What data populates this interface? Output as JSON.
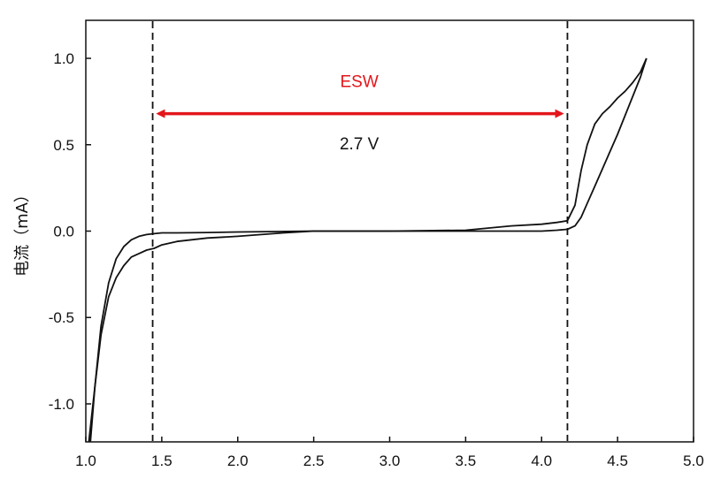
{
  "chart_data": {
    "type": "line",
    "title": "",
    "xlabel": "",
    "ylabel": "电流（mA）",
    "xlim": [
      1.0,
      5.0
    ],
    "ylim": [
      -1.22,
      1.22
    ],
    "x_ticks": [
      "1.0",
      "1.5",
      "2.0",
      "2.5",
      "3.0",
      "3.5",
      "4.0",
      "4.5",
      "5.0"
    ],
    "y_ticks": [
      "-1.0",
      "-0.5",
      "0.0",
      "0.5",
      "1.0"
    ],
    "grid": false,
    "legend": "none",
    "series": [
      {
        "x": [
          1.03,
          1.06,
          1.1,
          1.15,
          1.2,
          1.25,
          1.3,
          1.35,
          1.4,
          1.45,
          1.5,
          1.6,
          1.8,
          2.0,
          2.5,
          3.0,
          3.5,
          4.0,
          4.1,
          4.17,
          4.22,
          4.26,
          4.3,
          4.35,
          4.4,
          4.45,
          4.5,
          4.55,
          4.6,
          4.65,
          4.69
        ],
        "y": [
          -1.22,
          -0.9,
          -0.55,
          -0.3,
          -0.16,
          -0.09,
          -0.05,
          -0.03,
          -0.02,
          -0.015,
          -0.01,
          -0.01,
          -0.008,
          -0.005,
          0.0,
          0.0,
          0.0,
          0.0,
          0.005,
          0.01,
          0.03,
          0.08,
          0.16,
          0.26,
          0.36,
          0.46,
          0.56,
          0.67,
          0.78,
          0.89,
          1.0
        ]
      },
      {
        "x": [
          4.69,
          4.65,
          4.6,
          4.55,
          4.5,
          4.45,
          4.4,
          4.35,
          4.3,
          4.26,
          4.22,
          4.17,
          4.1,
          4.0,
          3.8,
          3.5,
          3.0,
          2.5,
          2.3,
          2.0,
          1.8,
          1.6,
          1.5,
          1.45,
          1.4,
          1.35,
          1.3,
          1.25,
          1.2,
          1.15,
          1.1,
          1.06,
          1.02
        ],
        "y": [
          1.0,
          0.92,
          0.86,
          0.81,
          0.77,
          0.72,
          0.68,
          0.62,
          0.5,
          0.35,
          0.15,
          0.06,
          0.05,
          0.04,
          0.03,
          0.005,
          0.0,
          0.0,
          -0.01,
          -0.03,
          -0.04,
          -0.06,
          -0.08,
          -0.1,
          -0.11,
          -0.13,
          -0.15,
          -0.2,
          -0.27,
          -0.38,
          -0.6,
          -0.9,
          -1.22
        ]
      }
    ],
    "annotations": {
      "vline_left_x": 1.44,
      "vline_right_x": 4.17,
      "arrow": {
        "x_start": 1.48,
        "x_end": 4.13,
        "y": 0.68
      },
      "esw_label": {
        "text": "ESW",
        "x": 2.8,
        "y": 0.87,
        "color": "#e3161b"
      },
      "width_label": {
        "text": "2.7 V",
        "x": 2.8,
        "y": 0.51
      }
    }
  },
  "colors": {
    "line": "#111111",
    "accent": "#e3161b"
  }
}
